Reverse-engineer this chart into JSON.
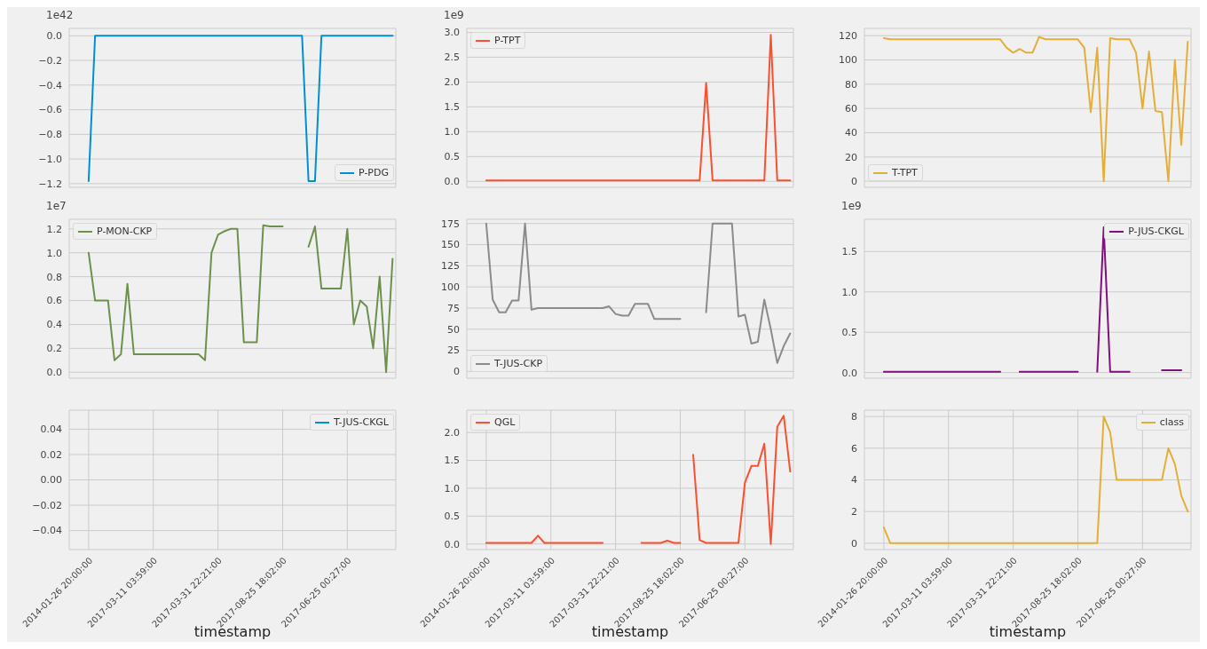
{
  "chart_data": [
    {
      "type": "line",
      "categories": [
        "2014-01-26 20:00:00",
        null,
        null,
        null,
        null,
        null,
        null,
        null,
        null,
        null,
        "2017-03-11 03:59:00",
        null,
        null,
        null,
        null,
        null,
        null,
        null,
        null,
        null,
        "2017-03-31 22:21:00",
        null,
        null,
        null,
        null,
        null,
        null,
        null,
        null,
        null,
        "2017-08-25 18:02:00",
        null,
        null,
        null,
        null,
        null,
        null,
        null,
        null,
        null,
        "2017-06-25 00:27:00",
        null,
        null,
        null,
        null,
        null,
        null,
        null
      ],
      "series": [
        {
          "name": "P-PDG",
          "color": "#008fd5",
          "values": [
            -1.18,
            0,
            0,
            0,
            0,
            0,
            0,
            0,
            0,
            0,
            0,
            0,
            0,
            0,
            0,
            0,
            0,
            0,
            0,
            0,
            0,
            0,
            0,
            0,
            0,
            0,
            0,
            0,
            0,
            0,
            0,
            0,
            0,
            0,
            -1.18,
            -1.18,
            0,
            0,
            0,
            0,
            0,
            0,
            0,
            0,
            0,
            0,
            0,
            0
          ]
        }
      ],
      "ylim": [
        -1.23,
        0.06
      ],
      "yticks": [
        {
          "value": 0,
          "label": "0.0"
        },
        {
          "value": -0.2,
          "label": "−0.2"
        },
        {
          "value": -0.4,
          "label": "−0.4"
        },
        {
          "value": -0.6,
          "label": "−0.6"
        },
        {
          "value": -0.8,
          "label": "−0.8"
        },
        {
          "value": -1.0,
          "label": "−1.0"
        },
        {
          "value": -1.2,
          "label": "−1.2"
        }
      ],
      "annotations": [
        "1e42"
      ],
      "grid": true,
      "legend": "bottom right",
      "tick_labels": "y"
    },
    {
      "type": "line",
      "categories": [
        "2014-01-26 20:00:00",
        null,
        null,
        null,
        null,
        null,
        null,
        null,
        null,
        null,
        "2017-03-11 03:59:00",
        null,
        null,
        null,
        null,
        null,
        null,
        null,
        null,
        null,
        "2017-03-31 22:21:00",
        null,
        null,
        null,
        null,
        null,
        null,
        null,
        null,
        null,
        "2017-08-25 18:02:00",
        null,
        null,
        null,
        null,
        null,
        null,
        null,
        null,
        null,
        "2017-06-25 00:27:00",
        null,
        null,
        null,
        null,
        null,
        null,
        null
      ],
      "series": [
        {
          "name": "P-TPT",
          "color": "#fc4f30",
          "values": [
            0.02,
            0.02,
            0.02,
            0.02,
            0.02,
            0.02,
            0.02,
            0.02,
            0.02,
            0.02,
            0.02,
            0.02,
            0.02,
            0.02,
            0.02,
            0.02,
            0.02,
            0.02,
            0.02,
            0.02,
            0.02,
            0.02,
            0.02,
            0.02,
            0.02,
            0.02,
            0.02,
            0.02,
            0.02,
            0.02,
            0.02,
            0.02,
            0.02,
            0.02,
            1.98,
            0.02,
            0.02,
            0.02,
            0.02,
            0.02,
            0.02,
            0.02,
            0.02,
            0.02,
            2.95,
            0.02,
            0.02,
            0.02
          ]
        }
      ],
      "ylim": [
        -0.12,
        3.08
      ],
      "yticks": [
        {
          "value": 0,
          "label": "0.0"
        },
        {
          "value": 0.5,
          "label": "0.5"
        },
        {
          "value": 1,
          "label": "1.0"
        },
        {
          "value": 1.5,
          "label": "1.5"
        },
        {
          "value": 2,
          "label": "2.0"
        },
        {
          "value": 2.5,
          "label": "2.5"
        },
        {
          "value": 3,
          "label": "3.0"
        }
      ],
      "annotations": [
        "1e9"
      ],
      "grid": true,
      "legend": "top left",
      "tick_labels": "y"
    },
    {
      "type": "line",
      "categories": [
        "2014-01-26 20:00:00",
        null,
        null,
        null,
        null,
        null,
        null,
        null,
        null,
        null,
        "2017-03-11 03:59:00",
        null,
        null,
        null,
        null,
        null,
        null,
        null,
        null,
        null,
        "2017-03-31 22:21:00",
        null,
        null,
        null,
        null,
        null,
        null,
        null,
        null,
        null,
        "2017-08-25 18:02:00",
        null,
        null,
        null,
        null,
        null,
        null,
        null,
        null,
        null,
        "2017-06-25 00:27:00",
        null,
        null,
        null,
        null,
        null,
        null,
        null
      ],
      "series": [
        {
          "name": "T-TPT",
          "color": "#e5ae38",
          "values": [
            118,
            117,
            117,
            117,
            117,
            117,
            117,
            117,
            117,
            117,
            117,
            117,
            117,
            117,
            117,
            117,
            117,
            117,
            117,
            110,
            106,
            109,
            106,
            106,
            119,
            117,
            117,
            117,
            117,
            117,
            117,
            110,
            57,
            110,
            0,
            118,
            117,
            117,
            117,
            106,
            60,
            107,
            58,
            57,
            0,
            100,
            30,
            115
          ]
        }
      ],
      "ylim": [
        -5,
        126
      ],
      "yticks": [
        0,
        20,
        40,
        60,
        80,
        100,
        120
      ],
      "grid": true,
      "legend": "bottom left",
      "tick_labels": "y"
    },
    {
      "type": "line",
      "categories": [
        "2014-01-26 20:00:00",
        null,
        null,
        null,
        null,
        null,
        null,
        null,
        null,
        null,
        "2017-03-11 03:59:00",
        null,
        null,
        null,
        null,
        null,
        null,
        null,
        null,
        null,
        "2017-03-31 22:21:00",
        null,
        null,
        null,
        null,
        null,
        null,
        null,
        null,
        null,
        "2017-08-25 18:02:00",
        null,
        null,
        null,
        null,
        null,
        null,
        null,
        null,
        null,
        "2017-06-25 00:27:00",
        null,
        null,
        null,
        null,
        null,
        null,
        null
      ],
      "series": [
        {
          "name": "P-MON-CKP",
          "color": "#6d904f",
          "values": [
            1.0,
            0.6,
            0.6,
            0.6,
            0.1,
            0.15,
            0.74,
            0.15,
            0.15,
            0.15,
            0.15,
            0.15,
            0.15,
            0.15,
            0.15,
            0.15,
            0.15,
            0.15,
            0.1,
            1.0,
            1.15,
            1.18,
            1.2,
            1.2,
            0.25,
            0.25,
            0.25,
            1.23,
            1.22,
            1.22,
            1.22,
            null,
            null,
            null,
            1.05,
            1.22,
            0.7,
            0.7,
            0.7,
            0.7,
            1.2,
            0.4,
            0.6,
            0.55,
            0.2,
            0.8,
            0.0,
            0.95
          ]
        }
      ],
      "ylim": [
        -0.05,
        1.28
      ],
      "yticks": [
        {
          "value": 0,
          "label": "0.0"
        },
        {
          "value": 0.2,
          "label": "0.2"
        },
        {
          "value": 0.4,
          "label": "0.4"
        },
        {
          "value": 0.6,
          "label": "0.6"
        },
        {
          "value": 0.8,
          "label": "0.8"
        },
        {
          "value": 1.0,
          "label": "1.0"
        },
        {
          "value": 1.2,
          "label": "1.2"
        }
      ],
      "annotations": [
        "1e7"
      ],
      "grid": true,
      "legend": "top left",
      "tick_labels": "y"
    },
    {
      "type": "line",
      "categories": [
        "2014-01-26 20:00:00",
        null,
        null,
        null,
        null,
        null,
        null,
        null,
        null,
        null,
        "2017-03-11 03:59:00",
        null,
        null,
        null,
        null,
        null,
        null,
        null,
        null,
        null,
        "2017-03-31 22:21:00",
        null,
        null,
        null,
        null,
        null,
        null,
        null,
        null,
        null,
        "2017-08-25 18:02:00",
        null,
        null,
        null,
        null,
        null,
        null,
        null,
        null,
        null,
        "2017-06-25 00:27:00",
        null,
        null,
        null,
        null,
        null,
        null,
        null
      ],
      "series": [
        {
          "name": "T-JUS-CKP",
          "color": "#8b8b8b",
          "values": [
            175,
            85,
            70,
            70,
            84,
            84,
            175,
            73,
            75,
            75,
            75,
            75,
            75,
            75,
            75,
            75,
            75,
            75,
            75,
            77,
            68,
            66,
            66,
            80,
            80,
            80,
            62,
            62,
            62,
            62,
            62,
            null,
            null,
            null,
            70,
            175,
            175,
            175,
            175,
            65,
            67,
            33,
            35,
            85,
            50,
            10,
            30,
            45
          ]
        }
      ],
      "ylim": [
        -8,
        180
      ],
      "yticks": [
        0,
        25,
        50,
        75,
        100,
        125,
        150,
        175
      ],
      "grid": true,
      "legend": "bottom left",
      "tick_labels": "y"
    },
    {
      "type": "line",
      "categories": [
        "2014-01-26 20:00:00",
        null,
        null,
        null,
        null,
        null,
        null,
        null,
        null,
        null,
        "2017-03-11 03:59:00",
        null,
        null,
        null,
        null,
        null,
        null,
        null,
        null,
        null,
        "2017-03-31 22:21:00",
        null,
        null,
        null,
        null,
        null,
        null,
        null,
        null,
        null,
        "2017-08-25 18:02:00",
        null,
        null,
        null,
        null,
        null,
        null,
        null,
        null,
        null,
        "2017-06-25 00:27:00",
        null,
        null,
        null,
        null,
        null,
        null,
        null
      ],
      "series": [
        {
          "name": "P-JUS-CKGL",
          "color": "#810f7c",
          "values": [
            0.01,
            0.01,
            0.01,
            0.01,
            0.01,
            0.01,
            0.01,
            0.01,
            0.01,
            0.01,
            0.01,
            0.01,
            0.01,
            0.01,
            0.01,
            0.01,
            0.01,
            0.01,
            0.01,
            null,
            null,
            0.01,
            0.01,
            0.01,
            0.01,
            0.01,
            0.01,
            0.01,
            0.01,
            0.01,
            0.01,
            null,
            null,
            0.01,
            1.8,
            0.01,
            0.01,
            0.01,
            0.01,
            null,
            null,
            null,
            null,
            0.03,
            0.03,
            0.03,
            0.03,
            null
          ]
        }
      ],
      "ylim": [
        -0.07,
        1.9
      ],
      "yticks": [
        {
          "value": 0,
          "label": "0.0"
        },
        {
          "value": 0.5,
          "label": "0.5"
        },
        {
          "value": 1,
          "label": "1.0"
        },
        {
          "value": 1.5,
          "label": "1.5"
        }
      ],
      "annotations": [
        "1e9"
      ],
      "grid": true,
      "legend": "top right",
      "tick_labels": "y"
    },
    {
      "type": "line",
      "categories": [
        "2014-01-26 20:00:00",
        null,
        null,
        null,
        null,
        null,
        null,
        null,
        null,
        null,
        "2017-03-11 03:59:00",
        null,
        null,
        null,
        null,
        null,
        null,
        null,
        null,
        null,
        "2017-03-31 22:21:00",
        null,
        null,
        null,
        null,
        null,
        null,
        null,
        null,
        null,
        "2017-08-25 18:02:00",
        null,
        null,
        null,
        null,
        null,
        null,
        null,
        null,
        null,
        "2017-06-25 00:27:00",
        null,
        null,
        null,
        null,
        null,
        null,
        null
      ],
      "series": [
        {
          "name": "T-JUS-CKGL",
          "color": "#008fd5",
          "values": [
            null,
            null,
            null,
            null,
            null,
            null,
            null,
            null,
            null,
            null,
            null,
            null,
            null,
            null,
            null,
            null,
            null,
            null,
            null,
            null,
            null,
            null,
            null,
            null,
            null,
            null,
            null,
            null,
            null,
            null,
            null,
            null,
            null,
            null,
            null,
            null,
            null,
            null,
            null,
            null,
            null,
            null,
            null,
            null,
            null,
            null,
            null,
            null
          ]
        }
      ],
      "ylim": [
        -0.055,
        0.055
      ],
      "yticks": [
        {
          "value": -0.04,
          "label": "−0.04"
        },
        {
          "value": -0.02,
          "label": "−0.02"
        },
        {
          "value": 0,
          "label": "0.00"
        },
        {
          "value": 0.02,
          "label": "0.02"
        },
        {
          "value": 0.04,
          "label": "0.04"
        }
      ],
      "xlabel": "timestamp",
      "grid": true,
      "legend": "top right"
    },
    {
      "type": "line",
      "categories": [
        "2014-01-26 20:00:00",
        null,
        null,
        null,
        null,
        null,
        null,
        null,
        null,
        null,
        "2017-03-11 03:59:00",
        null,
        null,
        null,
        null,
        null,
        null,
        null,
        null,
        null,
        "2017-03-31 22:21:00",
        null,
        null,
        null,
        null,
        null,
        null,
        null,
        null,
        null,
        "2017-08-25 18:02:00",
        null,
        null,
        null,
        null,
        null,
        null,
        null,
        null,
        null,
        "2017-06-25 00:27:00",
        null,
        null,
        null,
        null,
        null,
        null,
        null
      ],
      "series": [
        {
          "name": "QGL",
          "color": "#fc4f30",
          "values": [
            0.02,
            0.02,
            0.02,
            0.02,
            0.02,
            0.02,
            0.02,
            0.02,
            0.15,
            0.02,
            0.02,
            0.02,
            0.02,
            0.02,
            0.02,
            0.02,
            0.02,
            0.02,
            0.02,
            null,
            null,
            null,
            null,
            null,
            0.02,
            0.02,
            0.02,
            0.02,
            0.06,
            0.02,
            0.02,
            null,
            1.6,
            0.07,
            0.02,
            0.02,
            0.02,
            0.02,
            0.02,
            0.02,
            1.1,
            1.4,
            1.4,
            1.8,
            0.0,
            2.1,
            2.3,
            1.3
          ]
        }
      ],
      "ylim": [
        -0.1,
        2.4
      ],
      "yticks": [
        {
          "value": 0,
          "label": "0.0"
        },
        {
          "value": 0.5,
          "label": "0.5"
        },
        {
          "value": 1,
          "label": "1.0"
        },
        {
          "value": 1.5,
          "label": "1.5"
        },
        {
          "value": 2,
          "label": "2.0"
        }
      ],
      "xlabel": "timestamp",
      "grid": true,
      "legend": "top left"
    },
    {
      "type": "line",
      "categories": [
        "2014-01-26 20:00:00",
        null,
        null,
        null,
        null,
        null,
        null,
        null,
        null,
        null,
        "2017-03-11 03:59:00",
        null,
        null,
        null,
        null,
        null,
        null,
        null,
        null,
        null,
        "2017-03-31 22:21:00",
        null,
        null,
        null,
        null,
        null,
        null,
        null,
        null,
        null,
        "2017-08-25 18:02:00",
        null,
        null,
        null,
        null,
        null,
        null,
        null,
        null,
        null,
        "2017-06-25 00:27:00",
        null,
        null,
        null,
        null,
        null,
        null,
        null
      ],
      "series": [
        {
          "name": "class",
          "color": "#e5ae38",
          "values": [
            1,
            0,
            0,
            0,
            0,
            0,
            0,
            0,
            0,
            0,
            0,
            0,
            0,
            0,
            0,
            0,
            0,
            0,
            0,
            0,
            0,
            0,
            0,
            0,
            0,
            0,
            0,
            0,
            0,
            0,
            0,
            0,
            0,
            0,
            8,
            7,
            4,
            4,
            4,
            4,
            4,
            4,
            4,
            4,
            6,
            5,
            3,
            2
          ]
        }
      ],
      "ylim": [
        -0.4,
        8.4
      ],
      "yticks": [
        0,
        2,
        4,
        6,
        8
      ],
      "xlabel": "timestamp",
      "grid": true,
      "legend": "top right"
    }
  ]
}
